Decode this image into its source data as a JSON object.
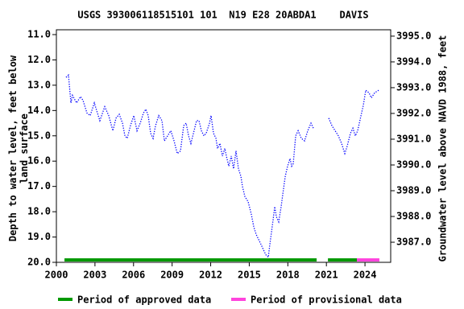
{
  "chart_data": {
    "type": "line",
    "title": "USGS 393006118515101 101  N19 E28 20ABDA1    DAVIS",
    "y_label": "Depth to water level, feet below land surface",
    "y2_label": "Groundwater level above NAVD 1988, feet",
    "color": "#0000ff",
    "x": [
      2000.75,
      2000.94,
      2001.13,
      2001.25,
      2001.57,
      2001.88,
      2002.07,
      2002.38,
      2002.63,
      2002.95,
      2003.13,
      2003.38,
      2003.76,
      2004.07,
      2004.39,
      2004.64,
      2004.89,
      2005.14,
      2005.33,
      2005.51,
      2005.76,
      2006.02,
      2006.27,
      2006.52,
      2006.77,
      2006.96,
      2007.14,
      2007.33,
      2007.52,
      2007.71,
      2007.96,
      2008.21,
      2008.4,
      2008.65,
      2008.9,
      2009.15,
      2009.4,
      2009.65,
      2009.9,
      2010.09,
      2010.28,
      2010.46,
      2010.71,
      2010.9,
      2011.09,
      2011.28,
      2011.47,
      2011.65,
      2011.91,
      2012.03,
      2012.22,
      2012.41,
      2012.53,
      2012.72,
      2012.91,
      2013.1,
      2013.22,
      2013.41,
      2013.6,
      2013.78,
      2013.97,
      2014.16,
      2014.35,
      2014.47,
      2014.66,
      2014.91,
      2015.16,
      2015.35,
      2015.54,
      2015.73,
      2015.92,
      2016.1,
      2016.29,
      2016.48,
      2016.6,
      2016.73,
      2016.86,
      2016.98,
      2017.11,
      2017.29,
      2017.48,
      2017.61,
      2017.8,
      2017.98,
      2018.17,
      2018.3,
      2018.42,
      2018.61,
      2018.8,
      2019.05,
      2019.3,
      2019.55,
      2019.8,
      2019.99,
      2020.5,
      2021.18,
      2021.43,
      2021.68,
      2021.93,
      2022.18,
      2022.43,
      2022.62,
      2022.87,
      2023.06,
      2023.25,
      2023.43,
      2023.69,
      2023.87,
      2024.06,
      2024.31,
      2024.5,
      2024.75,
      2025.06
    ],
    "values": [
      12.69,
      12.6,
      13.7,
      13.4,
      13.7,
      13.45,
      13.6,
      14.1,
      14.2,
      13.7,
      14.0,
      14.4,
      13.85,
      14.2,
      14.8,
      14.3,
      14.15,
      14.5,
      15.0,
      15.1,
      14.6,
      14.2,
      14.8,
      14.5,
      14.1,
      13.95,
      14.2,
      14.9,
      15.1,
      14.6,
      14.2,
      14.4,
      15.2,
      15.0,
      14.8,
      15.2,
      15.7,
      15.6,
      14.6,
      14.5,
      15.0,
      15.3,
      14.8,
      14.4,
      14.4,
      14.8,
      15.0,
      14.9,
      14.5,
      14.2,
      14.9,
      15.1,
      15.5,
      15.3,
      15.8,
      15.5,
      15.8,
      16.2,
      15.8,
      16.3,
      15.6,
      16.3,
      16.6,
      17.0,
      17.4,
      17.6,
      18.1,
      18.6,
      18.9,
      19.1,
      19.3,
      19.5,
      19.7,
      19.8,
      19.3,
      18.8,
      18.3,
      17.8,
      18.2,
      18.4,
      17.8,
      17.3,
      16.6,
      16.2,
      15.9,
      16.2,
      16.1,
      15.0,
      14.8,
      15.1,
      15.2,
      14.8,
      14.5,
      14.7,
      null,
      14.3,
      14.6,
      14.8,
      15.0,
      15.3,
      15.7,
      15.4,
      14.9,
      14.7,
      15.0,
      14.8,
      14.2,
      13.8,
      13.2,
      13.3,
      13.5,
      13.3,
      13.2
    ],
    "xlim": [
      2000,
      2026
    ],
    "xticks": [
      2000,
      2003,
      2006,
      2009,
      2012,
      2015,
      2018,
      2021,
      2024
    ],
    "ylim": [
      11,
      20
    ],
    "y_inverted": true,
    "yticks": [
      {
        "value": 11,
        "label": "11.0"
      },
      {
        "value": 12,
        "label": "12.0"
      },
      {
        "value": 13,
        "label": "13.0"
      },
      {
        "value": 14,
        "label": "14.0"
      },
      {
        "value": 15,
        "label": "15.0"
      },
      {
        "value": 16,
        "label": "16.0"
      },
      {
        "value": 17,
        "label": "17.0"
      },
      {
        "value": 18,
        "label": "18.0"
      },
      {
        "value": 19,
        "label": "19.0"
      },
      {
        "value": 20,
        "label": "20.0"
      }
    ],
    "y2lim": [
      3986.22,
      3995.06
    ],
    "y2ticks": [
      {
        "value": 3987,
        "label": "3987.0"
      },
      {
        "value": 3988,
        "label": "3988.0"
      },
      {
        "value": 3989,
        "label": "3989.0"
      },
      {
        "value": 3990,
        "label": "3990.0"
      },
      {
        "value": 3991,
        "label": "3991.0"
      },
      {
        "value": 3992,
        "label": "3992.0"
      },
      {
        "value": 3993,
        "label": "3993.0"
      },
      {
        "value": 3994,
        "label": "3994.0"
      },
      {
        "value": 3995,
        "label": "3995.0"
      }
    ],
    "approval_periods": [
      {
        "name": "Period of approved data",
        "color": "#009900",
        "ranges": [
          [
            2000.63,
            2020.24
          ],
          [
            2021.12,
            2023.37
          ]
        ]
      },
      {
        "name": "Period of provisional data",
        "color": "#ff44dd",
        "ranges": [
          [
            2023.37,
            2025.12
          ]
        ]
      }
    ]
  }
}
